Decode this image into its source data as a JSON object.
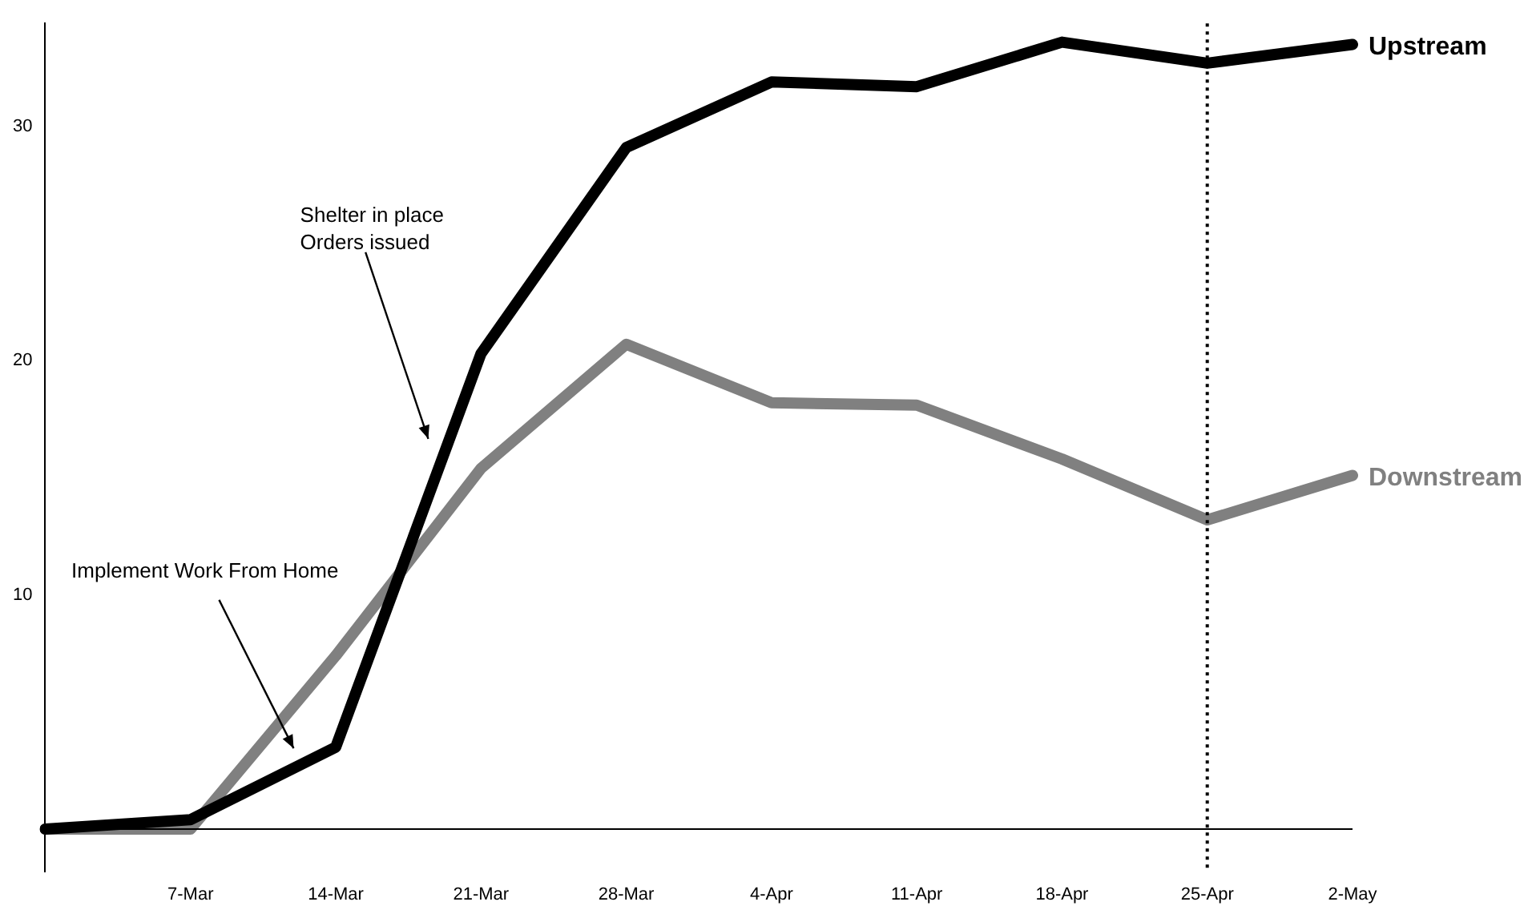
{
  "chart_data": {
    "type": "line",
    "categories": [
      null,
      "7-Mar",
      "14-Mar",
      "21-Mar",
      "28-Mar",
      "4-Apr",
      "11-Apr",
      "18-Apr",
      "25-Apr",
      "2-May"
    ],
    "series": [
      {
        "name": "Upstream",
        "color": "#000000",
        "values": [
          0,
          0.4,
          3.5,
          20.3,
          29.1,
          31.9,
          31.7,
          33.6,
          32.7,
          33.5
        ]
      },
      {
        "name": "Downstream",
        "color": "#808080",
        "values": [
          0,
          0,
          7.4,
          15.4,
          20.7,
          18.2,
          18.1,
          15.8,
          13.2,
          15.1
        ]
      }
    ],
    "ylim": [
      -1.8,
      34.4
    ],
    "yticks": [
      10,
      20,
      30
    ],
    "grid": false,
    "legend": false,
    "marker": "none",
    "line_style": "solid",
    "ref_lines": [
      {
        "axis": "x",
        "value": "25-Apr",
        "color": "#000000",
        "line_style": "dotted"
      }
    ],
    "annotations": [
      "Shelter in place\nOrders issued",
      "Implement Work From Home"
    ]
  }
}
